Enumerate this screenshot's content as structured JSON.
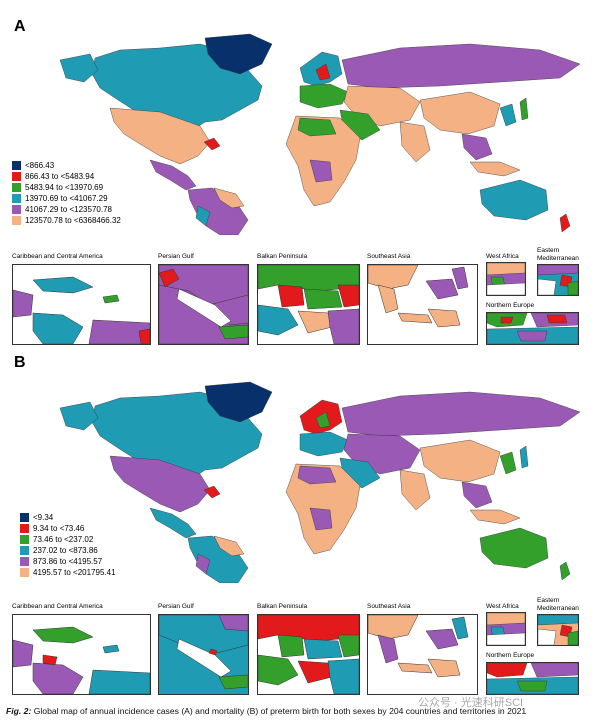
{
  "panels": [
    {
      "id": "A",
      "label": "A",
      "legend": [
        {
          "text": "<866.43",
          "color": "#08306b"
        },
        {
          "text": "866.43 to <5483.94",
          "color": "#e31a1c"
        },
        {
          "text": "5483.94 to <13970.69",
          "color": "#33a02c"
        },
        {
          "text": "13970.69 to <41067.29",
          "color": "#1f9bb4"
        },
        {
          "text": "41067.29 to <123570.78",
          "color": "#9b59b6"
        },
        {
          "text": "123570.78 to <6368466.32",
          "color": "#f4b183"
        }
      ],
      "insets": [
        {
          "title": "Caribbean and Central America"
        },
        {
          "title": "Persian Gulf"
        },
        {
          "title": "Balkan Peninsula"
        },
        {
          "title": "Southeast Asia"
        },
        {
          "title": "West Africa"
        },
        {
          "title": "Eastern Mediterranean"
        },
        {
          "title": "Northern Europe"
        }
      ]
    },
    {
      "id": "B",
      "label": "B",
      "legend": [
        {
          "text": "<9.34",
          "color": "#08306b"
        },
        {
          "text": "9.34 to <73.46",
          "color": "#e31a1c"
        },
        {
          "text": "73.46 to <237.02",
          "color": "#33a02c"
        },
        {
          "text": "237.02 to <873.86",
          "color": "#1f9bb4"
        },
        {
          "text": "873.86 to <4195.57",
          "color": "#9b59b6"
        },
        {
          "text": "4195.57 to <201795.41",
          "color": "#f4b183"
        }
      ],
      "insets": [
        {
          "title": "Caribbean and Central America"
        },
        {
          "title": "Persian Gulf"
        },
        {
          "title": "Balkan Peninsula"
        },
        {
          "title": "Southeast Asia"
        },
        {
          "title": "West Africa"
        },
        {
          "title": "Eastern Mediterranean"
        },
        {
          "title": "Northern Europe"
        }
      ]
    }
  ],
  "caption": {
    "fig": "Fig. 2:",
    "text": "Global map of annual incidence cases (A) and mortality (B) of preterm birth for both sexes by 204 countries and territories in 2021"
  },
  "watermark": "公众号 · 光速科研SCI"
}
